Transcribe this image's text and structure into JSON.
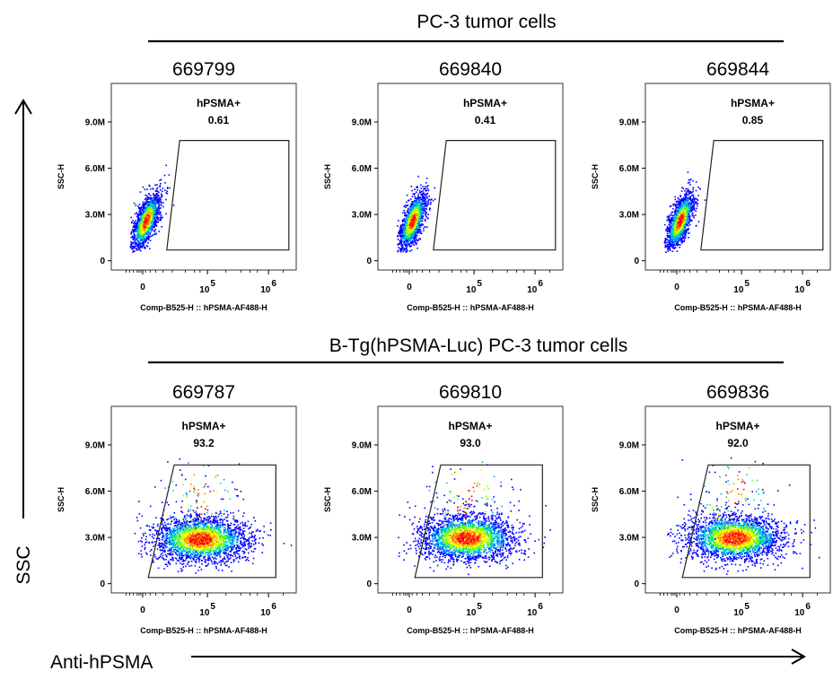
{
  "figure": {
    "y_axis_label": "SSC",
    "x_axis_label": "Anti-hPSMA"
  },
  "groups": [
    {
      "title": "PC-3 tumor cells"
    },
    {
      "title": "B-Tg(hPSMA-Luc) PC-3 tumor cells"
    }
  ],
  "colors": {
    "density": [
      "#0000ff",
      "#00a0ff",
      "#00e0a0",
      "#80ff00",
      "#ffff00",
      "#ff8000",
      "#ff0000"
    ],
    "gate": "#222222",
    "axis": "#000000"
  },
  "chart_data": [
    {
      "type": "scatter",
      "subtype": "flow-cytometry-density-plot",
      "title": "669799",
      "group": "PC-3 tumor cells",
      "xlabel": "Comp-B525-H :: hPSMA-AF488-H",
      "ylabel": "SSC-H",
      "x_scale": "biexponential",
      "x_ticks": [
        "0",
        "10^5",
        "10^6"
      ],
      "y_ticks": [
        "0",
        "3.0M",
        "6.0M",
        "9.0M"
      ],
      "ylim": [
        -0.6,
        11.5
      ],
      "gate": {
        "name": "hPSMA+",
        "percent": "0.61"
      },
      "population": {
        "x_center": 0.0,
        "y_center": 2.6
      }
    },
    {
      "type": "scatter",
      "subtype": "flow-cytometry-density-plot",
      "title": "669840",
      "group": "PC-3 tumor cells",
      "xlabel": "Comp-B525-H :: hPSMA-AF488-H",
      "ylabel": "SSC-H",
      "x_scale": "biexponential",
      "x_ticks": [
        "0",
        "10^5",
        "10^6"
      ],
      "y_ticks": [
        "0",
        "3.0M",
        "6.0M",
        "9.0M"
      ],
      "ylim": [
        -0.6,
        11.5
      ],
      "gate": {
        "name": "hPSMA+",
        "percent": "0.41"
      },
      "population": {
        "x_center": 0.0,
        "y_center": 2.6
      }
    },
    {
      "type": "scatter",
      "subtype": "flow-cytometry-density-plot",
      "title": "669844",
      "group": "PC-3 tumor cells",
      "xlabel": "Comp-B525-H :: hPSMA-AF488-H",
      "ylabel": "SSC-H",
      "x_scale": "biexponential",
      "x_ticks": [
        "0",
        "10^5",
        "10^6"
      ],
      "y_ticks": [
        "0",
        "3.0M",
        "6.0M",
        "9.0M"
      ],
      "ylim": [
        -0.6,
        11.5
      ],
      "gate": {
        "name": "hPSMA+",
        "percent": "0.85"
      },
      "population": {
        "x_center": 0.0,
        "y_center": 2.6
      }
    },
    {
      "type": "scatter",
      "subtype": "flow-cytometry-density-plot",
      "title": "669787",
      "group": "B-Tg(hPSMA-Luc) PC-3 tumor cells",
      "xlabel": "Comp-B525-H :: hPSMA-AF488-H",
      "ylabel": "SSC-H",
      "x_scale": "biexponential",
      "x_ticks": [
        "0",
        "10^5",
        "10^6"
      ],
      "y_ticks": [
        "0",
        "3.0M",
        "6.0M",
        "9.0M"
      ],
      "ylim": [
        -0.6,
        11.5
      ],
      "gate": {
        "name": "hPSMA+",
        "percent": "93.2"
      },
      "population": {
        "x_center": 100000,
        "y_center": 2.9
      }
    },
    {
      "type": "scatter",
      "subtype": "flow-cytometry-density-plot",
      "title": "669810",
      "group": "B-Tg(hPSMA-Luc) PC-3 tumor cells",
      "xlabel": "Comp-B525-H :: hPSMA-AF488-H",
      "ylabel": "SSC-H",
      "x_scale": "biexponential",
      "x_ticks": [
        "0",
        "10^5",
        "10^6"
      ],
      "y_ticks": [
        "0",
        "3.0M",
        "6.0M",
        "9.0M"
      ],
      "ylim": [
        -0.6,
        11.5
      ],
      "gate": {
        "name": "hPSMA+",
        "percent": "93.0"
      },
      "population": {
        "x_center": 100000,
        "y_center": 3.0
      }
    },
    {
      "type": "scatter",
      "subtype": "flow-cytometry-density-plot",
      "title": "669836",
      "group": "B-Tg(hPSMA-Luc) PC-3 tumor cells",
      "xlabel": "Comp-B525-H :: hPSMA-AF488-H",
      "ylabel": "SSC-H",
      "x_scale": "biexponential",
      "x_ticks": [
        "0",
        "10^5",
        "10^6"
      ],
      "y_ticks": [
        "0",
        "3.0M",
        "6.0M",
        "9.0M"
      ],
      "ylim": [
        -0.6,
        11.5
      ],
      "gate": {
        "name": "hPSMA+",
        "percent": "92.0"
      },
      "population": {
        "x_center": 100000,
        "y_center": 3.0
      }
    }
  ]
}
